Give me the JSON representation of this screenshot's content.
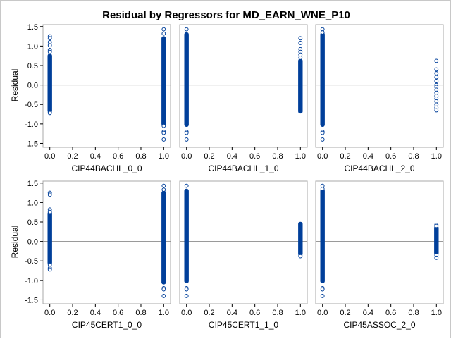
{
  "chart_data": {
    "type": "scatter",
    "title": "Residual by Regressors for MD_EARN_WNE_P10",
    "ylabel": "Residual",
    "ylim": [
      -1.6,
      1.55
    ],
    "yticks": [
      "-1.5",
      "-1.0",
      "-0.5",
      "0.0",
      "0.5",
      "1.0",
      "1.5"
    ],
    "xlim": [
      -0.06,
      1.06
    ],
    "xticks": [
      "0.0",
      "0.2",
      "0.4",
      "0.6",
      "0.8",
      "1.0"
    ],
    "reference_line_y": 0,
    "marker_color": "#003f9a",
    "grid": false,
    "panels": [
      {
        "xlabel": "CIP44BACHL_0_0",
        "series": [
          {
            "x": 0,
            "band": [
              -0.66,
              0.75
            ],
            "points": [
              1.25,
              1.2,
              1.1,
              1.02,
              0.9,
              0.85,
              -0.7,
              -0.72
            ]
          },
          {
            "x": 1,
            "band": [
              -1.0,
              1.2
            ],
            "points": [
              1.43,
              1.32,
              -1.05,
              -1.2,
              -1.23,
              -1.4
            ]
          }
        ]
      },
      {
        "xlabel": "CIP44BACHL_1_0",
        "series": [
          {
            "x": 0,
            "band": [
              -1.02,
              1.3
            ],
            "points": [
              1.43,
              -1.2,
              -1.23,
              -1.4
            ]
          },
          {
            "x": 1,
            "band": [
              -0.68,
              0.62
            ],
            "points": [
              1.2,
              1.08,
              0.92,
              0.85,
              0.78,
              0.7
            ]
          }
        ]
      },
      {
        "xlabel": "CIP44BACHL_2_0",
        "series": [
          {
            "x": 0,
            "band": [
              -1.02,
              1.3
            ],
            "points": [
              1.43,
              1.35,
              -1.2,
              -1.23,
              -1.4
            ]
          },
          {
            "x": 1,
            "band": [],
            "points": [
              0.62,
              0.4,
              0.3,
              0.2,
              0.1,
              0.0,
              -0.05,
              -0.12,
              -0.2,
              -0.28,
              -0.35,
              -0.42,
              -0.5,
              -0.58,
              -0.65
            ]
          }
        ]
      },
      {
        "xlabel": "CIP45CERT1_0_0",
        "series": [
          {
            "x": 0,
            "band": [
              -0.55,
              0.72
            ],
            "points": [
              1.25,
              1.2,
              0.82,
              0.76,
              -0.6,
              -0.68,
              -0.72
            ]
          },
          {
            "x": 1,
            "band": [
              -1.05,
              1.25
            ],
            "points": [
              1.43,
              1.33,
              -1.2,
              -1.23,
              -1.4
            ]
          }
        ]
      },
      {
        "xlabel": "CIP45CERT1_1_0",
        "series": [
          {
            "x": 0,
            "band": [
              -1.02,
              1.3
            ],
            "points": [
              1.43,
              -1.2,
              -1.23,
              -1.4
            ]
          },
          {
            "x": 1,
            "band": [
              -0.32,
              0.45
            ],
            "points": [
              -0.36,
              -0.38
            ]
          }
        ]
      },
      {
        "xlabel": "CIP45ASSOC_2_0",
        "series": [
          {
            "x": 0,
            "band": [
              -1.02,
              1.3
            ],
            "points": [
              1.43,
              1.35,
              -1.2,
              -1.23,
              -1.4
            ]
          },
          {
            "x": 1,
            "band": [
              -0.3,
              0.35
            ],
            "points": [
              0.43,
              0.4,
              -0.35,
              -0.42
            ]
          }
        ]
      }
    ]
  }
}
